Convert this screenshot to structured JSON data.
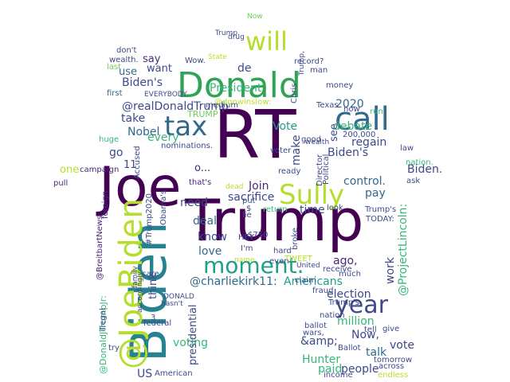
{
  "colors": {
    "background": "#ffffff",
    "palette": [
      "#440154",
      "#482878",
      "#3e4989",
      "#31688e",
      "#26828e",
      "#1f9e89",
      "#35b779",
      "#6ece58",
      "#b5de2b",
      "#fde725"
    ]
  },
  "words": [
    {
      "text": "RT",
      "color": "#440154"
    },
    {
      "text": "Trump",
      "color": "#440154"
    },
    {
      "text": "Joe",
      "color": "#440154"
    },
    {
      "text": "Donald",
      "color": "#31a354"
    },
    {
      "text": "Biden",
      "color": "#26828e"
    },
    {
      "text": "@JoeBiden",
      "color": "#b5de2b"
    },
    {
      "text": "will",
      "color": "#b5de2b"
    },
    {
      "text": "tax",
      "color": "#31688e"
    },
    {
      "text": "call",
      "color": "#31688e"
    },
    {
      "text": "Sully",
      "color": "#b5de2b"
    },
    {
      "text": "year",
      "color": "#3e4989"
    },
    {
      "text": "moment.",
      "color": "#1f9e89"
    },
    {
      "text": "@realDonaldTrump",
      "color": "#3e4989"
    },
    {
      "text": "President",
      "color": "#35b779"
    },
    {
      "text": "Biden's",
      "color": "#3e4989"
    },
    {
      "text": "say",
      "color": "#482878"
    },
    {
      "text": "use",
      "color": "#31688e"
    },
    {
      "text": "want",
      "color": "#3e4989"
    },
    {
      "text": "take",
      "color": "#3e4989"
    },
    {
      "text": "Nobel",
      "color": "#31688e"
    },
    {
      "text": "every",
      "color": "#35b779"
    },
    {
      "text": "TRUMP",
      "color": "#6ece58"
    },
    {
      "text": "de",
      "color": "#3e4989"
    },
    {
      "text": "2020",
      "color": "#31688e"
    },
    {
      "text": "debate",
      "color": "#35b779"
    },
    {
      "text": "regain",
      "color": "#3e4989"
    },
    {
      "text": "Vote",
      "color": "#1f9e89"
    },
    {
      "text": "see",
      "color": "#3e4989"
    },
    {
      "text": "Biden's",
      "color": "#3e4989"
    },
    {
      "text": "control.",
      "color": "#31688e"
    },
    {
      "text": "Biden.",
      "color": "#3e4989"
    },
    {
      "text": "pay",
      "color": "#31688e"
    },
    {
      "text": "make",
      "color": "#3e4989"
    },
    {
      "text": "sacrifice",
      "color": "#3e4989"
    },
    {
      "text": "Join",
      "color": "#482878"
    },
    {
      "text": "time",
      "color": "#3e4989"
    },
    {
      "text": "need",
      "color": "#3e4989"
    },
    {
      "text": "deal",
      "color": "#31688e"
    },
    {
      "text": "know",
      "color": "#3e4989"
    },
    {
      "text": "love",
      "color": "#31688e"
    },
    {
      "text": "@charliekirk11:",
      "color": "#31688e"
    },
    {
      "text": "Americans",
      "color": "#1f9e89"
    },
    {
      "text": "ago,",
      "color": "#482878"
    },
    {
      "text": "election",
      "color": "#3e4989"
    },
    {
      "text": "million",
      "color": "#35b779"
    },
    {
      "text": "work",
      "color": "#3e4989"
    },
    {
      "text": "@ProjectLincoln:",
      "color": "#35b779"
    },
    {
      "text": "Now,",
      "color": "#3e4989"
    },
    {
      "text": "&amp;",
      "color": "#3e4989"
    },
    {
      "text": "vote",
      "color": "#3e4989"
    },
    {
      "text": "talk",
      "color": "#31688e"
    },
    {
      "text": "Hunter",
      "color": "#35b779"
    },
    {
      "text": "people",
      "color": "#3e4989"
    },
    {
      "text": "paid",
      "color": "#35b779"
    },
    {
      "text": "voting",
      "color": "#35b779"
    },
    {
      "text": "presidential",
      "color": "#3e4989"
    },
    {
      "text": "US",
      "color": "#3e4989"
    },
    {
      "text": "think",
      "color": "#3e4989"
    },
    {
      "text": "go",
      "color": "#3e4989"
    },
    {
      "text": "11",
      "color": "#3e4989"
    },
    {
      "text": "one",
      "color": "#b5de2b"
    },
    {
      "text": "campaign",
      "color": "#482878"
    },
    {
      "text": "@DonaldJTrumpJr:",
      "color": "#35b779"
    },
    {
      "text": "@BreitbartNews:",
      "color": "#482878"
    },
    {
      "text": "foreign",
      "color": "#482878"
    },
    {
      "text": "#Trump2020",
      "color": "#3e4989"
    },
    {
      "text": "Obama's",
      "color": "#3e4989"
    },
    {
      "text": "o...",
      "color": "#482878"
    },
    {
      "text": "that's",
      "color": "#482878"
    },
    {
      "text": "Accused",
      "color": "#3e4989"
    },
    {
      "text": "nominations.",
      "color": "#3e4989"
    },
    {
      "text": "huge",
      "color": "#35b779"
    },
    {
      "text": "pull",
      "color": "#482878"
    },
    {
      "text": "Wow.",
      "color": "#3e4989"
    },
    {
      "text": "don't",
      "color": "#3e4989"
    },
    {
      "text": "wealth.",
      "color": "#3e4989"
    },
    {
      "text": "last",
      "color": "#6ece58"
    },
    {
      "text": "first",
      "color": "#31688e"
    },
    {
      "text": "EVERYBODY",
      "color": "#3e4989"
    },
    {
      "text": "State",
      "color": "#b5de2b"
    },
    {
      "text": "record?",
      "color": "#3e4989"
    },
    {
      "text": "Now",
      "color": "#6ece58"
    },
    {
      "text": "Trump.",
      "color": "#3e4989"
    },
    {
      "text": "drug",
      "color": "#3e4989"
    },
    {
      "text": "Chris",
      "color": "#3e4989"
    },
    {
      "text": "Trump,",
      "color": "#3e4989"
    },
    {
      "text": "man",
      "color": "#3e4989"
    },
    {
      "text": "money",
      "color": "#3e4989"
    },
    {
      "text": "medium",
      "color": "#3e4989"
    },
    {
      "text": "@donwinslow:",
      "color": "#b5de2b"
    },
    {
      "text": "Texas",
      "color": "#3e4989"
    },
    {
      "text": "now",
      "color": "#3e4989"
    },
    {
      "text": "run",
      "color": "#35b779"
    },
    {
      "text": "Political",
      "color": "#3e4989"
    },
    {
      "text": "Director",
      "color": "#3e4989"
    },
    {
      "text": "200,000",
      "color": "#3e4989"
    },
    {
      "text": "good",
      "color": "#3e4989"
    },
    {
      "text": "wealth",
      "color": "#3e4989"
    },
    {
      "text": "voter",
      "color": "#3e4989"
    },
    {
      "text": "ready",
      "color": "#3e4989"
    },
    {
      "text": "law",
      "color": "#3e4989"
    },
    {
      "text": "nation.",
      "color": "#35b779"
    },
    {
      "text": "ask",
      "color": "#3e4989"
    },
    {
      "text": "dead",
      "color": "#b5de2b"
    },
    {
      "text": "return",
      "color": "#35b779"
    },
    {
      "text": "look",
      "color": "#3e4989"
    },
    {
      "text": "Trump's",
      "color": "#3e4989"
    },
    {
      "text": "TODAY:",
      "color": "#3e4989"
    },
    {
      "text": "put",
      "color": "#3e4989"
    },
    {
      "text": "lie",
      "color": "#3e4989"
    },
    {
      "text": "HEY",
      "color": "#3e4989"
    },
    {
      "text": "$750",
      "color": "#3e4989"
    },
    {
      "text": "I'm",
      "color": "#3e4989"
    },
    {
      "text": "hard",
      "color": "#3e4989"
    },
    {
      "text": "even",
      "color": "#3e4989"
    },
    {
      "text": "TWEET",
      "color": "#b5de2b"
    },
    {
      "text": "receive",
      "color": "#3e4989"
    },
    {
      "text": "broke",
      "color": "#3e4989"
    },
    {
      "text": "United",
      "color": "#3e4989"
    },
    {
      "text": "much",
      "color": "#3e4989"
    },
    {
      "text": "claim",
      "color": "#3e4989"
    },
    {
      "text": "fraud",
      "color": "#3e4989"
    },
    {
      "text": "Trump's",
      "color": "#3e4989"
    },
    {
      "text": "nation",
      "color": "#3e4989"
    },
    {
      "text": "ballot",
      "color": "#3e4989"
    },
    {
      "text": "give",
      "color": "#3e4989"
    },
    {
      "text": "tell",
      "color": "#3e4989"
    },
    {
      "text": "wars,",
      "color": "#3e4989"
    },
    {
      "text": "Ballot",
      "color": "#3e4989"
    },
    {
      "text": "tomorrow",
      "color": "#3e4989"
    },
    {
      "text": "across",
      "color": "#3e4989"
    },
    {
      "text": "income",
      "color": "#3e4989"
    },
    {
      "text": "endless",
      "color": "#b5de2b"
    },
    {
      "text": "federal",
      "color": "#3e4989"
    },
    {
      "text": "accordingly",
      "color": "#3e4989"
    },
    {
      "text": "family",
      "color": "#3e4989"
    },
    {
      "text": "illegal",
      "color": "#3e4989"
    },
    {
      "text": "try",
      "color": "#3e4989"
    },
    {
      "text": "American",
      "color": "#3e4989"
    },
    {
      "text": "DONALD",
      "color": "#3e4989"
    },
    {
      "text": "hasn't",
      "color": "#3e4989"
    },
    {
      "text": "3",
      "color": "#3e4989"
    },
    {
      "text": "care",
      "color": "#3e4989"
    },
    {
      "text": "name",
      "color": "#b5de2b"
    },
    {
      "text": "$",
      "color": "#3e4989"
    }
  ]
}
